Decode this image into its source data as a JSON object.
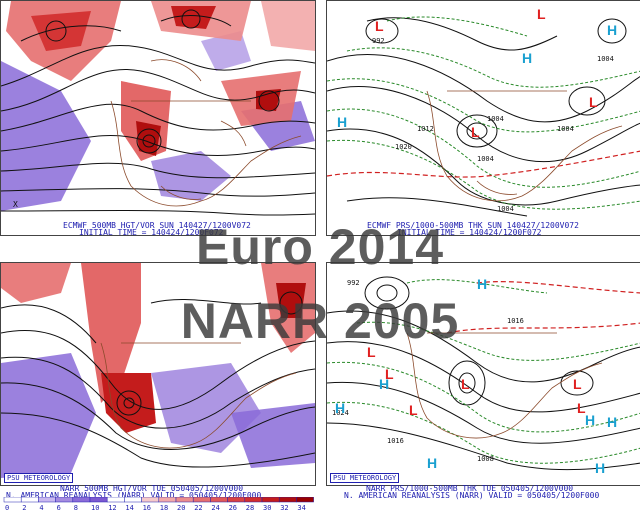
{
  "panels": {
    "top_left": {
      "caption_line1": "ECMWF 500MB HGT/VOR SUN 140427/1200V072",
      "caption_line2": "INITIAL TIME = 140424/1200F072"
    },
    "top_right": {
      "caption_line1": "ECMWF PRS/1000-500MB THK SUN 140427/1200V072",
      "caption_line2": "INITIAL TIME = 140424/1200F072",
      "pressure_labels": [
        "992",
        "1004",
        "1004",
        "1020",
        "1012",
        "1004",
        "1004",
        "1004"
      ]
    },
    "bottom_left": {
      "badge": "PSU METEOROLOGY",
      "caption_line1": "NARR 500MB HGT/VOR TUE 050405/1200V000",
      "caption_line2": "N. AMERICAN REANALYSIS (NARR) VALID = 050405/1200F000"
    },
    "bottom_right": {
      "badge": "PSU METEOROLOGY",
      "caption_line1": "NARR PRS/1000-500MB THK TUE 050405/1200V000",
      "caption_line2": "N. AMERICAN REANALYSIS (NARR) VALID = 050405/1200F000",
      "pressure_labels": [
        "992",
        "1016",
        "1016",
        "1024",
        "1008"
      ]
    }
  },
  "overlay": {
    "line1": "Euro 2014",
    "line2": "NARR 2005"
  },
  "color_scale": {
    "labels": [
      "0",
      "2",
      "4",
      "6",
      "8",
      "10",
      "12",
      "14",
      "16",
      "18",
      "20",
      "22",
      "24",
      "26",
      "28",
      "30",
      "32",
      "34"
    ],
    "colors": [
      "#ffffff",
      "#ffffff",
      "#c9b8f0",
      "#a48be0",
      "#8a6bd8",
      "#7b58d0",
      "#ffffff",
      "#ffffff",
      "#f6c9c9",
      "#f2a9a9",
      "#ec8c8c",
      "#e66f6f",
      "#e05858",
      "#d94141",
      "#d22e2e",
      "#c41c1c",
      "#b00e0e",
      "#990000"
    ]
  },
  "symbols": {
    "low": "L",
    "high": "H",
    "low_color": "#e02020",
    "high_color": "#1aa0d0"
  }
}
